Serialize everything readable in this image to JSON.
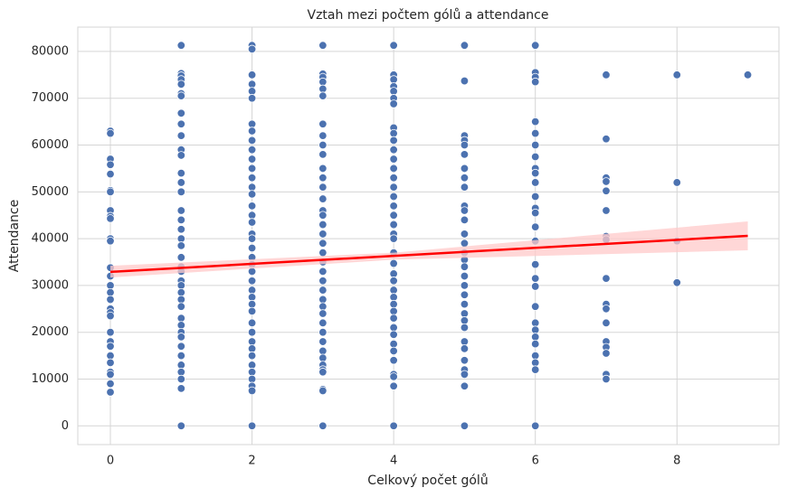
{
  "chart_data": {
    "type": "scatter",
    "title": "Vztah mezi počtem gólů a attendance",
    "xlabel": "Celkový počet gólů",
    "ylabel": "Attendance",
    "xlim": [
      -0.46,
      9.44
    ],
    "ylim": [
      -4000,
      85200
    ],
    "xticks": [
      0,
      2,
      4,
      6,
      8
    ],
    "yticks": [
      0,
      10000,
      20000,
      30000,
      40000,
      50000,
      60000,
      70000,
      80000
    ],
    "grid": true,
    "color": "#4c72b0",
    "groups": [
      {
        "x": 0,
        "values": [
          63000,
          62500,
          57000,
          55800,
          53800,
          50300,
          50000,
          46000,
          44800,
          44300,
          40000,
          39500,
          33800,
          32000,
          30000,
          28500,
          27000,
          25000,
          24200,
          23500,
          20000,
          18000,
          17000,
          15000,
          13500,
          11500,
          11000,
          9000,
          7200
        ]
      },
      {
        "x": 1,
        "values": [
          81300,
          75300,
          74800,
          74000,
          73000,
          71000,
          70500,
          66800,
          64500,
          62000,
          59000,
          57800,
          54000,
          52000,
          50000,
          46000,
          44000,
          42000,
          40000,
          38500,
          36000,
          34000,
          33000,
          31000,
          30000,
          28500,
          27000,
          25500,
          23000,
          21500,
          20000,
          19000,
          17000,
          15000,
          13000,
          11500,
          10000,
          8000,
          0
        ]
      },
      {
        "x": 2,
        "values": [
          81300,
          80500,
          75000,
          73000,
          71500,
          70000,
          64500,
          63000,
          61000,
          59000,
          57000,
          55000,
          53000,
          51000,
          49500,
          47000,
          45000,
          43500,
          41000,
          40000,
          38000,
          36000,
          34500,
          33000,
          31000,
          29000,
          27500,
          26000,
          24500,
          22000,
          20000,
          18000,
          16500,
          15000,
          13000,
          11500,
          10000,
          8500,
          7500,
          0
        ]
      },
      {
        "x": 3,
        "values": [
          81300,
          75200,
          74500,
          73500,
          72000,
          70500,
          64500,
          62000,
          60000,
          58000,
          55000,
          53000,
          51000,
          48500,
          46000,
          45000,
          43000,
          41000,
          39000,
          37000,
          35000,
          33000,
          31000,
          29000,
          27000,
          25500,
          24000,
          22000,
          20000,
          18000,
          16000,
          14500,
          13000,
          12000,
          11500,
          7800,
          7500,
          0
        ]
      },
      {
        "x": 4,
        "values": [
          81300,
          75000,
          74000,
          72500,
          71500,
          70000,
          68800,
          63700,
          62500,
          61000,
          59000,
          57000,
          55000,
          53000,
          51000,
          49000,
          47000,
          45000,
          43000,
          41000,
          40000,
          37000,
          34700,
          32500,
          31000,
          29000,
          27500,
          26000,
          24500,
          23000,
          21000,
          19500,
          17500,
          16000,
          14000,
          11000,
          10500,
          8500,
          0
        ]
      },
      {
        "x": 5,
        "values": [
          81300,
          73700,
          62000,
          61000,
          60000,
          58000,
          55000,
          53000,
          51000,
          47000,
          46000,
          44000,
          41000,
          39000,
          37000,
          35500,
          34000,
          32000,
          30000,
          28000,
          26000,
          24000,
          22500,
          21000,
          18000,
          16500,
          14000,
          12000,
          11000,
          8500,
          0
        ]
      },
      {
        "x": 6,
        "values": [
          81300,
          75500,
          74500,
          73500,
          65000,
          62500,
          60000,
          57500,
          55000,
          54000,
          52000,
          49000,
          46500,
          45500,
          42500,
          39500,
          34500,
          31500,
          29800,
          25500,
          22000,
          20500,
          19000,
          17500,
          15000,
          13500,
          12000,
          0
        ]
      },
      {
        "x": 7,
        "values": [
          75000,
          61300,
          53000,
          52200,
          50200,
          46000,
          40500,
          39800,
          31500,
          26000,
          25000,
          22000,
          18000,
          16800,
          15500,
          11000,
          10000
        ]
      },
      {
        "x": 8,
        "values": [
          75000,
          52000,
          39500,
          30600
        ]
      },
      {
        "x": 9,
        "values": [
          75000
        ]
      }
    ],
    "regression": {
      "color": "#ff0000",
      "x": [
        0,
        9
      ],
      "values": [
        32900,
        40600
      ]
    },
    "band": {
      "color": "#ffcaca",
      "x": [
        0,
        4,
        9
      ],
      "lower": [
        31700,
        35500,
        37500
      ],
      "upper": [
        34200,
        37000,
        43700
      ]
    }
  }
}
